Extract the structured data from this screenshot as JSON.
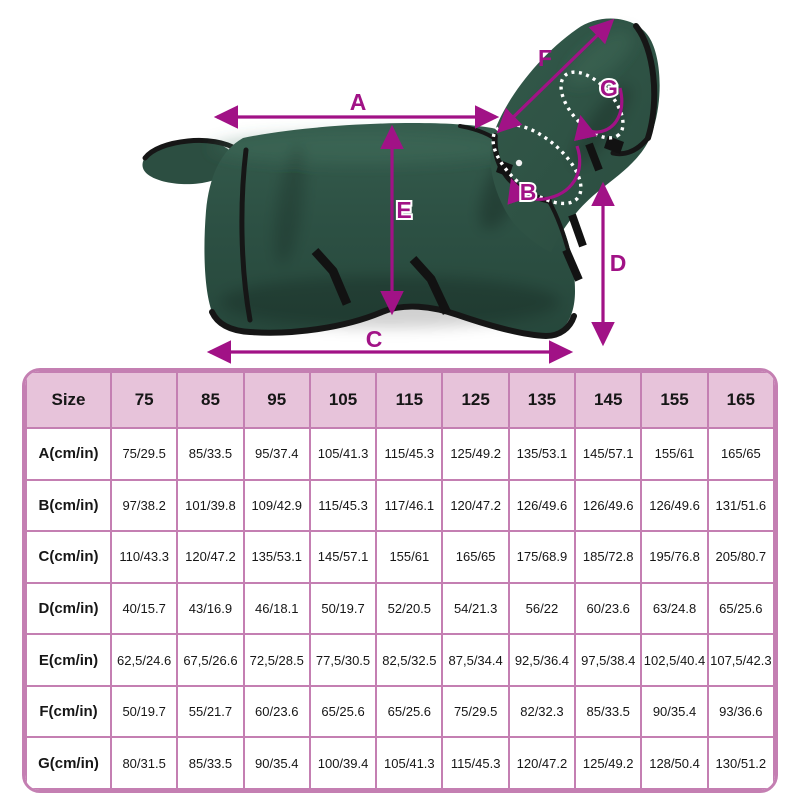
{
  "diagram": {
    "labels": {
      "a": "A",
      "b": "B",
      "c": "C",
      "d": "D",
      "e": "E",
      "f": "F",
      "g": "G"
    },
    "colors": {
      "arrow_magenta": "#a11286",
      "rug_green": "#2d5144",
      "binding_black": "#161616",
      "table_border_pink": "#c47fb2",
      "table_header_bg": "#e7c3da"
    }
  },
  "table": {
    "header": [
      "Size",
      "75",
      "85",
      "95",
      "105",
      "115",
      "125",
      "135",
      "145",
      "155",
      "165"
    ],
    "rows": [
      {
        "label": "A(cm/in)",
        "values": [
          "75/29.5",
          "85/33.5",
          "95/37.4",
          "105/41.3",
          "115/45.3",
          "125/49.2",
          "135/53.1",
          "145/57.1",
          "155/61",
          "165/65"
        ]
      },
      {
        "label": "B(cm/in)",
        "values": [
          "97/38.2",
          "101/39.8",
          "109/42.9",
          "115/45.3",
          "117/46.1",
          "120/47.2",
          "126/49.6",
          "126/49.6",
          "126/49.6",
          "131/51.6"
        ]
      },
      {
        "label": "C(cm/in)",
        "values": [
          "110/43.3",
          "120/47.2",
          "135/53.1",
          "145/57.1",
          "155/61",
          "165/65",
          "175/68.9",
          "185/72.8",
          "195/76.8",
          "205/80.7"
        ]
      },
      {
        "label": "D(cm/in)",
        "values": [
          "40/15.7",
          "43/16.9",
          "46/18.1",
          "50/19.7",
          "52/20.5",
          "54/21.3",
          "56/22",
          "60/23.6",
          "63/24.8",
          "65/25.6"
        ]
      },
      {
        "label": "E(cm/in)",
        "values": [
          "62,5/24.6",
          "67,5/26.6",
          "72,5/28.5",
          "77,5/30.5",
          "82,5/32.5",
          "87,5/34.4",
          "92,5/36.4",
          "97,5/38.4",
          "102,5/40.4",
          "107,5/42.3"
        ]
      },
      {
        "label": "F(cm/in)",
        "values": [
          "50/19.7",
          "55/21.7",
          "60/23.6",
          "65/25.6",
          "65/25.6",
          "75/29.5",
          "82/32.3",
          "85/33.5",
          "90/35.4",
          "93/36.6"
        ]
      },
      {
        "label": "G(cm/in)",
        "values": [
          "80/31.5",
          "85/33.5",
          "90/35.4",
          "100/39.4",
          "105/41.3",
          "115/45.3",
          "120/47.2",
          "125/49.2",
          "128/50.4",
          "130/51.2"
        ]
      }
    ]
  }
}
